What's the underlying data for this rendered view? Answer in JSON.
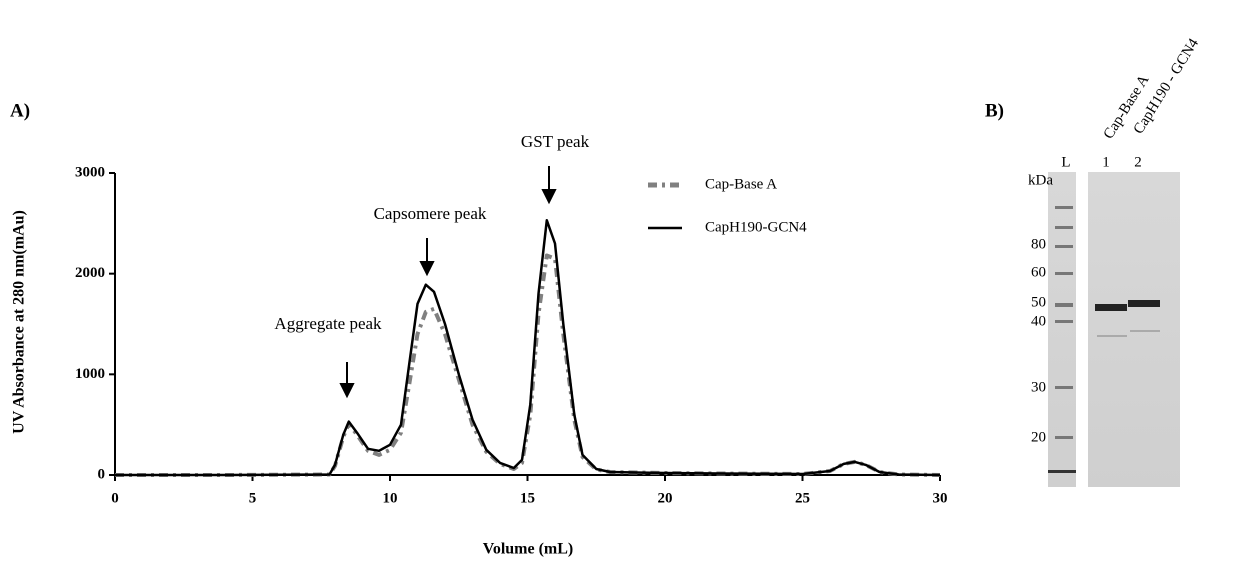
{
  "chart_data": {
    "type": "line",
    "panel_label": "A)",
    "xlabel": "Volume (mL)",
    "ylabel": "UV Absorbance at 280 nm(mAu)",
    "annotations": [
      "GST peak",
      "Capsomere peak",
      "Aggregate peak"
    ],
    "x": [
      0,
      4,
      7.8,
      8.0,
      8.3,
      8.5,
      8.8,
      9.2,
      9.6,
      10.0,
      10.4,
      10.7,
      11.0,
      11.3,
      11.6,
      12.0,
      12.5,
      13.0,
      13.5,
      14.0,
      14.5,
      14.8,
      15.1,
      15.4,
      15.7,
      16.0,
      16.3,
      16.7,
      17.0,
      17.5,
      18,
      20,
      22,
      25,
      26,
      26.5,
      26.9,
      27.3,
      27.8,
      28.5,
      30
    ],
    "series": [
      {
        "name": "Cap-Base A",
        "color": "#808080",
        "dash": true,
        "values": [
          0,
          0,
          5,
          90,
          380,
          510,
          400,
          240,
          200,
          250,
          420,
          900,
          1400,
          1620,
          1650,
          1400,
          950,
          500,
          230,
          110,
          60,
          120,
          600,
          1600,
          2180,
          2150,
          1400,
          550,
          180,
          55,
          30,
          20,
          15,
          10,
          40,
          110,
          130,
          100,
          30,
          5,
          0
        ]
      },
      {
        "name": "CapH190-GCN4",
        "color": "#000000",
        "dash": false,
        "values": [
          0,
          0,
          5,
          100,
          400,
          530,
          420,
          260,
          240,
          300,
          500,
          1100,
          1700,
          1890,
          1820,
          1500,
          1000,
          550,
          250,
          120,
          70,
          150,
          700,
          1800,
          2530,
          2300,
          1500,
          600,
          200,
          60,
          30,
          20,
          15,
          10,
          40,
          110,
          130,
          100,
          30,
          5,
          0
        ]
      }
    ],
    "xlim": [
      0,
      30
    ],
    "xticks": [
      0,
      5,
      10,
      15,
      20,
      25,
      30
    ],
    "ylim": [
      0,
      3000
    ],
    "yticks": [
      0,
      1000,
      2000,
      3000
    ]
  },
  "gel": {
    "panel_label": "B)",
    "unit": "kDa",
    "lanes": [
      "L",
      "1",
      "2"
    ],
    "samples": [
      "Cap-Base A",
      "CapH190 - GCN4"
    ],
    "markers": [
      "80",
      "60",
      "50",
      "40",
      "30",
      "20"
    ]
  }
}
